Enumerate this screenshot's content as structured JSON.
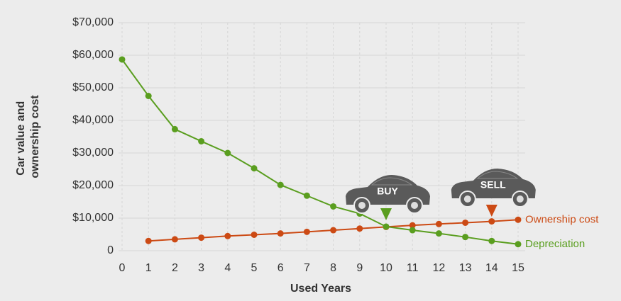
{
  "chart_data": {
    "type": "line",
    "xlabel": "Used Years",
    "ylabel": [
      "Car value and",
      "ownership cost"
    ],
    "x": [
      0,
      1,
      2,
      3,
      4,
      5,
      6,
      7,
      8,
      9,
      10,
      11,
      12,
      13,
      14,
      15
    ],
    "xlim": [
      0,
      15
    ],
    "xticks": [
      0,
      1,
      2,
      3,
      4,
      5,
      6,
      7,
      8,
      9,
      10,
      11,
      12,
      13,
      14,
      15
    ],
    "ylim": [
      0,
      70000
    ],
    "yticks": [
      0,
      {
        "value": 10000,
        "label": "$10,000"
      },
      {
        "value": 20000,
        "label": "$20,000"
      },
      {
        "value": 30000,
        "label": "$30,000"
      },
      {
        "value": 40000,
        "label": "$40,000"
      },
      {
        "value": 50000,
        "label": "$50,000"
      },
      {
        "value": 60000,
        "label": "$60,000"
      },
      {
        "value": 70000,
        "label": "$70,000"
      }
    ],
    "grid": true,
    "series": [
      {
        "name": "Ownership cost",
        "color": "#cc4a14",
        "values": [
          null,
          3000,
          3500,
          4000,
          4500,
          4900,
          5300,
          5800,
          6300,
          6800,
          7300,
          7800,
          8200,
          8600,
          9000,
          9500
        ]
      },
      {
        "name": "Depreciation",
        "color": "#5a9e1f",
        "values": [
          58700,
          47500,
          37300,
          33600,
          30000,
          25300,
          20200,
          16900,
          13600,
          11400,
          7400,
          6300,
          5300,
          4200,
          3000,
          2000
        ]
      }
    ],
    "annotations": [
      {
        "text": "BUY",
        "x": 10,
        "color": "#5a9e1f"
      },
      {
        "text": "SELL",
        "x": 14,
        "color": "#cc4a14"
      }
    ]
  }
}
